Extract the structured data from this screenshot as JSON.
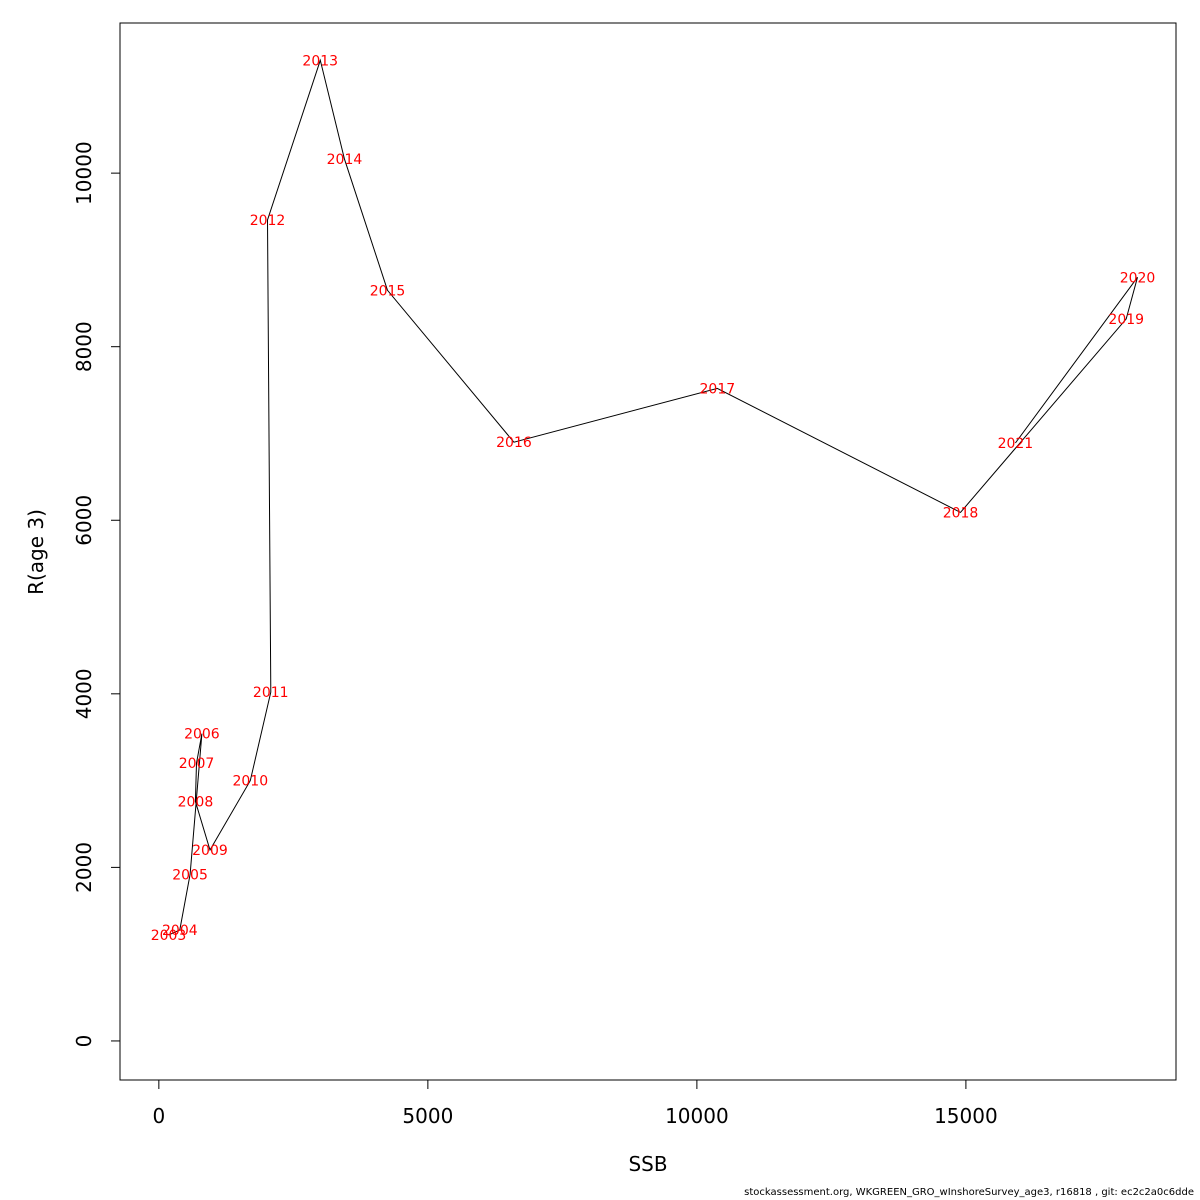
{
  "chart_data": {
    "type": "line",
    "xlabel": "SSB",
    "ylabel": "R(age 3)",
    "xlim": [
      -722,
      18905
    ],
    "ylim": [
      -450,
      11730
    ],
    "xticks": [
      0,
      5000,
      10000,
      15000
    ],
    "yticks": [
      0,
      2000,
      4000,
      6000,
      8000,
      10000
    ],
    "xtick_labels": [
      "0",
      "5000",
      "10000",
      "15000"
    ],
    "ytick_labels": [
      "0",
      "2000",
      "4000",
      "6000",
      "8000",
      "10000"
    ],
    "grid": false,
    "line_color": "#000000",
    "label_color": "#ff0000",
    "points": [
      {
        "year": "2003",
        "x": 180,
        "y": 1220
      },
      {
        "year": "2004",
        "x": 390,
        "y": 1280
      },
      {
        "year": "2005",
        "x": 580,
        "y": 1920
      },
      {
        "year": "2006",
        "x": 800,
        "y": 3540
      },
      {
        "year": "2007",
        "x": 700,
        "y": 3200
      },
      {
        "year": "2008",
        "x": 680,
        "y": 2760
      },
      {
        "year": "2009",
        "x": 950,
        "y": 2200
      },
      {
        "year": "2010",
        "x": 1700,
        "y": 3000
      },
      {
        "year": "2011",
        "x": 2080,
        "y": 4020
      },
      {
        "year": "2012",
        "x": 2020,
        "y": 9460
      },
      {
        "year": "2013",
        "x": 3000,
        "y": 11300
      },
      {
        "year": "2014",
        "x": 3450,
        "y": 10160
      },
      {
        "year": "2015",
        "x": 4250,
        "y": 8650
      },
      {
        "year": "2016",
        "x": 6600,
        "y": 6900
      },
      {
        "year": "2017",
        "x": 10380,
        "y": 7520
      },
      {
        "year": "2018",
        "x": 14900,
        "y": 6090
      },
      {
        "year": "2019",
        "x": 17980,
        "y": 8320
      },
      {
        "year": "2020",
        "x": 18190,
        "y": 8800
      },
      {
        "year": "2021",
        "x": 15920,
        "y": 6890
      }
    ]
  },
  "footer": {
    "text": "stockassessment.org, WKGREEN_GRO_wInshoreSurvey_age3, r16818 , git: ec2c2a0c6dde"
  }
}
